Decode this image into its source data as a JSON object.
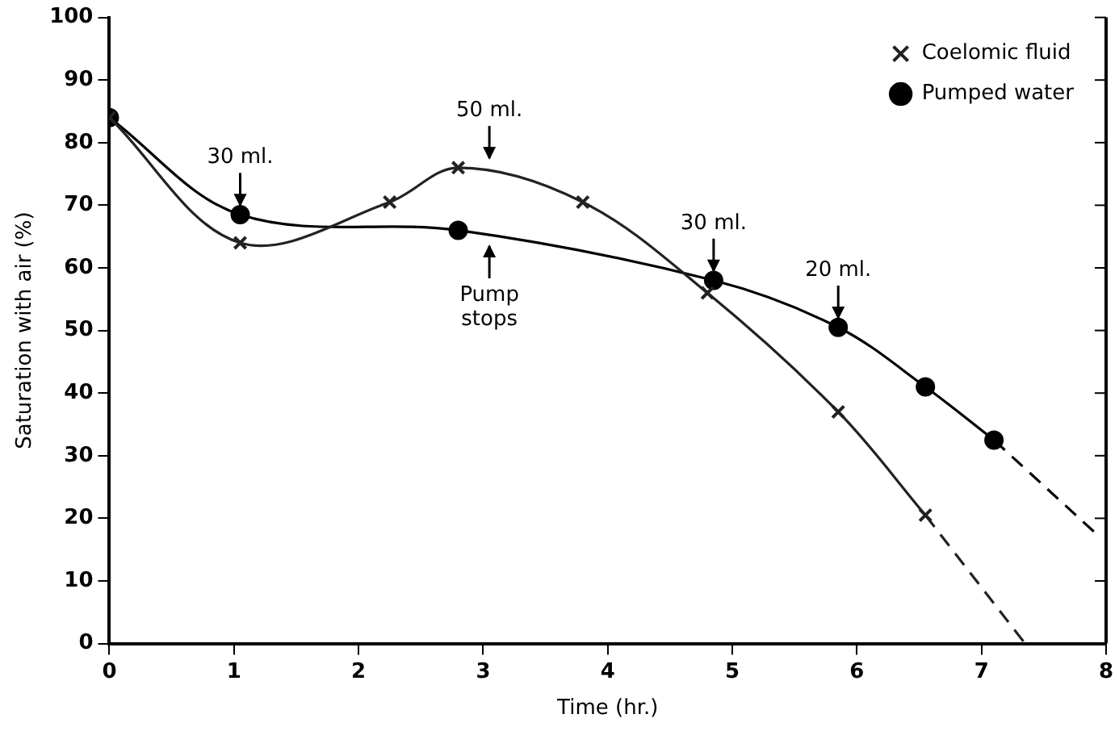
{
  "chart_data": {
    "type": "line",
    "xlabel": "Time (hr.)",
    "ylabel": "Saturation with air (%)",
    "xlim": [
      0,
      8
    ],
    "xticks": [
      0,
      1,
      2,
      3,
      4,
      5,
      6,
      7,
      8
    ],
    "ylim": [
      0,
      100
    ],
    "yticks": [
      0,
      10,
      20,
      30,
      40,
      50,
      60,
      70,
      80,
      90,
      100
    ],
    "grid": false,
    "legend": "top right",
    "series": [
      {
        "name": "Coelomic fluid",
        "color": "#222222",
        "marker": "cross",
        "x": [
          0,
          1.05,
          2.25,
          2.8,
          3.8,
          4.8,
          5.85,
          6.55
        ],
        "values": [
          84,
          64,
          70.5,
          76,
          70.5,
          56,
          37,
          20.5
        ]
      },
      {
        "name": "Pumped water",
        "color": "#000000",
        "marker": "circle",
        "x": [
          0,
          1.05,
          2.8,
          4.85,
          5.85,
          6.55,
          7.1
        ],
        "values": [
          84,
          68.5,
          66,
          58,
          50.5,
          41,
          32.5
        ]
      },
      {
        "color": "#222222",
        "marker": "none",
        "line_style": "dashed",
        "x": [
          6.55,
          7.35
        ],
        "values": [
          20.5,
          0
        ]
      },
      {
        "color": "#000000",
        "marker": "none",
        "line_style": "dashed",
        "x": [
          7.1,
          7.95
        ],
        "values": [
          32.5,
          17
        ]
      }
    ],
    "annotations": [
      {
        "text": "30 ml.",
        "x": 1.05,
        "y": 69.5
      },
      {
        "text": "50 ml.",
        "x": 3.05,
        "y": 77
      },
      {
        "text": "Pump stops",
        "x": 3.05,
        "y": 64
      },
      {
        "text": "30 ml.",
        "x": 4.85,
        "y": 59
      },
      {
        "text": "20 ml.",
        "x": 5.85,
        "y": 51.5
      }
    ]
  }
}
